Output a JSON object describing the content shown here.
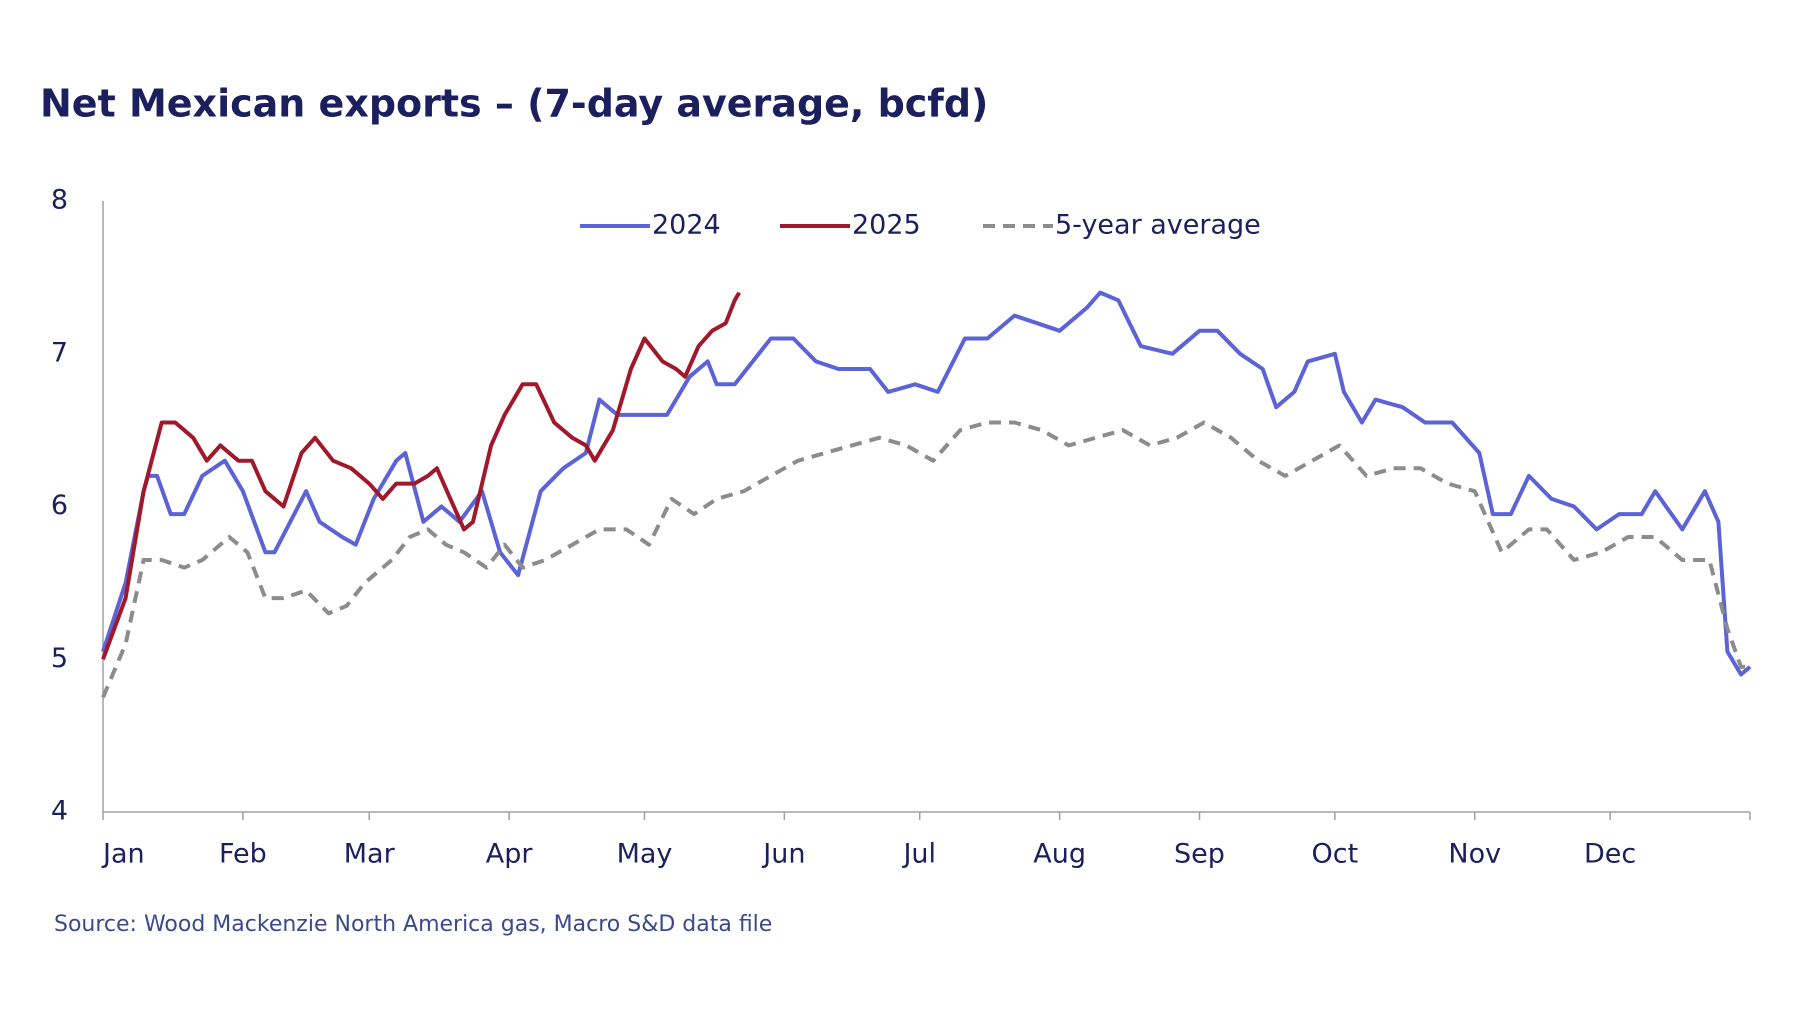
{
  "chart_data": {
    "type": "line",
    "title": "Net Mexican exports – (7-day average, bcfd)",
    "source": "Source: Wood Mackenzie North America gas, Macro S&D data file",
    "xlim": [
      0,
      365
    ],
    "xticks": [
      {
        "value": 0,
        "label": "Jan"
      },
      {
        "value": 31,
        "label": "Feb"
      },
      {
        "value": 59,
        "label": "Mar"
      },
      {
        "value": 90,
        "label": "Apr"
      },
      {
        "value": 120,
        "label": "May"
      },
      {
        "value": 151,
        "label": "Jun"
      },
      {
        "value": 181,
        "label": "Jul"
      },
      {
        "value": 212,
        "label": "Aug"
      },
      {
        "value": 243,
        "label": "Sep"
      },
      {
        "value": 273,
        "label": "Oct"
      },
      {
        "value": 304,
        "label": "Nov"
      },
      {
        "value": 334,
        "label": "Dec"
      }
    ],
    "ylim": [
      4,
      8
    ],
    "yticks": [
      4,
      5,
      6,
      7,
      8
    ],
    "grid": false,
    "series": [
      {
        "name": "2024",
        "color": "#5b63d6",
        "dashed": false,
        "x": [
          0,
          5,
          9,
          10,
          12,
          15,
          18,
          22,
          27,
          31,
          36,
          38,
          45,
          48,
          53,
          56,
          60,
          65,
          67,
          71,
          75,
          79,
          84,
          88,
          92,
          97,
          102,
          107,
          110,
          114,
          120,
          125,
          130,
          134,
          136,
          140,
          144,
          148,
          153,
          158,
          163,
          170,
          174,
          180,
          185,
          191,
          196,
          202,
          207,
          212,
          218,
          221,
          225,
          230,
          237,
          243,
          247,
          252,
          257,
          260,
          264,
          267,
          273,
          275,
          279,
          282,
          288,
          293,
          299,
          305,
          308,
          312,
          316,
          321,
          326,
          331,
          336,
          341,
          344,
          350,
          355,
          358,
          360,
          363,
          365
        ],
        "values": [
          5.05,
          5.5,
          6.1,
          6.2,
          6.2,
          5.95,
          5.95,
          6.2,
          6.3,
          6.1,
          5.7,
          5.7,
          6.1,
          5.9,
          5.8,
          5.75,
          6.05,
          6.3,
          6.35,
          5.9,
          6.0,
          5.9,
          6.1,
          5.7,
          5.55,
          6.1,
          6.25,
          6.35,
          6.7,
          6.6,
          6.6,
          6.6,
          6.85,
          6.95,
          6.8,
          6.8,
          6.95,
          7.1,
          7.1,
          6.95,
          6.9,
          6.9,
          6.75,
          6.8,
          6.75,
          7.1,
          7.1,
          7.25,
          7.2,
          7.15,
          7.3,
          7.4,
          7.35,
          7.05,
          7.0,
          7.15,
          7.15,
          7.0,
          6.9,
          6.65,
          6.75,
          6.95,
          7.0,
          6.75,
          6.55,
          6.7,
          6.65,
          6.55,
          6.55,
          6.35,
          5.95,
          5.95,
          6.2,
          6.05,
          6.0,
          5.85,
          5.95,
          5.95,
          6.1,
          5.85,
          6.1,
          5.9,
          5.05,
          4.9,
          4.95
        ]
      },
      {
        "name": "2025",
        "color": "#a0182a",
        "dashed": false,
        "x": [
          0,
          5,
          9,
          13,
          16,
          20,
          23,
          26,
          30,
          33,
          36,
          40,
          44,
          47,
          51,
          55,
          59,
          62,
          65,
          69,
          72,
          74,
          77,
          80,
          82,
          86,
          89,
          93,
          96,
          100,
          104,
          107,
          109,
          113,
          117,
          120,
          124,
          127,
          129,
          132,
          135,
          138,
          140,
          141
        ],
        "values": [
          5.0,
          5.4,
          6.1,
          6.55,
          6.55,
          6.45,
          6.3,
          6.4,
          6.3,
          6.3,
          6.1,
          6.0,
          6.35,
          6.45,
          6.3,
          6.25,
          6.15,
          6.05,
          6.15,
          6.15,
          6.2,
          6.25,
          6.05,
          5.85,
          5.9,
          6.4,
          6.6,
          6.8,
          6.8,
          6.55,
          6.45,
          6.4,
          6.3,
          6.5,
          6.9,
          7.1,
          6.95,
          6.9,
          6.85,
          7.05,
          7.15,
          7.2,
          7.35,
          7.4
        ]
      },
      {
        "name": "5-year average",
        "color": "#8c8c8c",
        "dashed": true,
        "x": [
          0,
          5,
          9,
          13,
          18,
          22,
          28,
          32,
          36,
          40,
          45,
          50,
          54,
          58,
          64,
          68,
          72,
          76,
          80,
          85,
          89,
          93,
          98,
          104,
          110,
          116,
          121,
          126,
          131,
          136,
          142,
          148,
          154,
          160,
          166,
          172,
          178,
          184,
          190,
          196,
          202,
          208,
          214,
          220,
          226,
          232,
          238,
          244,
          250,
          256,
          262,
          268,
          274,
          280,
          286,
          292,
          298,
          304,
          310,
          316,
          320,
          326,
          332,
          338,
          344,
          350,
          356,
          360,
          363,
          365
        ],
        "values": [
          4.75,
          5.1,
          5.65,
          5.65,
          5.6,
          5.65,
          5.8,
          5.7,
          5.4,
          5.4,
          5.45,
          5.3,
          5.35,
          5.5,
          5.65,
          5.8,
          5.85,
          5.75,
          5.7,
          5.6,
          5.75,
          5.6,
          5.65,
          5.75,
          5.85,
          5.85,
          5.75,
          6.05,
          5.95,
          6.05,
          6.1,
          6.2,
          6.3,
          6.35,
          6.4,
          6.45,
          6.4,
          6.3,
          6.5,
          6.55,
          6.55,
          6.5,
          6.4,
          6.45,
          6.5,
          6.4,
          6.45,
          6.55,
          6.45,
          6.3,
          6.2,
          6.3,
          6.4,
          6.2,
          6.25,
          6.25,
          6.15,
          6.1,
          5.7,
          5.85,
          5.85,
          5.65,
          5.7,
          5.8,
          5.8,
          5.65,
          5.65,
          5.2,
          4.95,
          4.95
        ]
      }
    ]
  }
}
